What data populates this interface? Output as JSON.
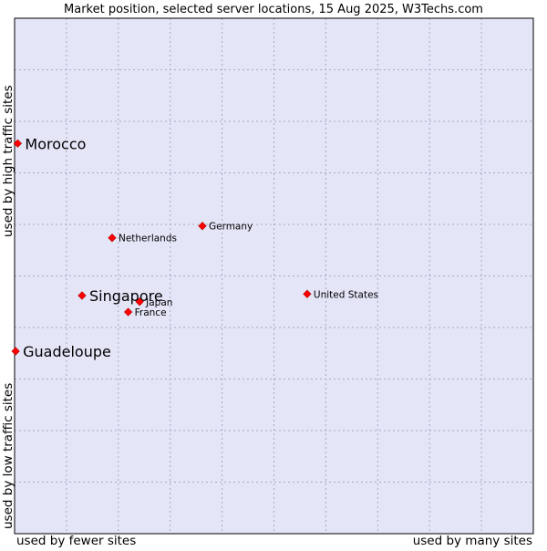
{
  "chart_data": {
    "type": "scatter",
    "title": "Market position, selected server locations, 15 Aug 2025, W3Techs.com",
    "xlabel_left": "used by fewer sites",
    "xlabel_right": "used by many sites",
    "ylabel_bottom": "used by low traffic sites",
    "ylabel_top": "used by high traffic sites",
    "xlim": [
      0,
      100
    ],
    "ylim": [
      0,
      100
    ],
    "grid": true,
    "colors": {
      "plot_background": "#e4e6f8",
      "grid": "#a8a8c0",
      "frame": "#000000",
      "marker": "#ff0000"
    },
    "points": [
      {
        "name": "Morocco",
        "x": 0.6,
        "y": 75.7,
        "highlight": true
      },
      {
        "name": "Singapore",
        "x": 13.0,
        "y": 46.2,
        "highlight": true
      },
      {
        "name": "Guadeloupe",
        "x": 0.2,
        "y": 35.4,
        "highlight": true
      },
      {
        "name": "Germany",
        "x": 36.2,
        "y": 59.7,
        "highlight": false
      },
      {
        "name": "Netherlands",
        "x": 18.8,
        "y": 57.4,
        "highlight": false
      },
      {
        "name": "United States",
        "x": 56.4,
        "y": 46.5,
        "highlight": false
      },
      {
        "name": "Japan",
        "x": 24.1,
        "y": 45.0,
        "highlight": false
      },
      {
        "name": "France",
        "x": 21.9,
        "y": 43.0,
        "highlight": false
      }
    ]
  }
}
